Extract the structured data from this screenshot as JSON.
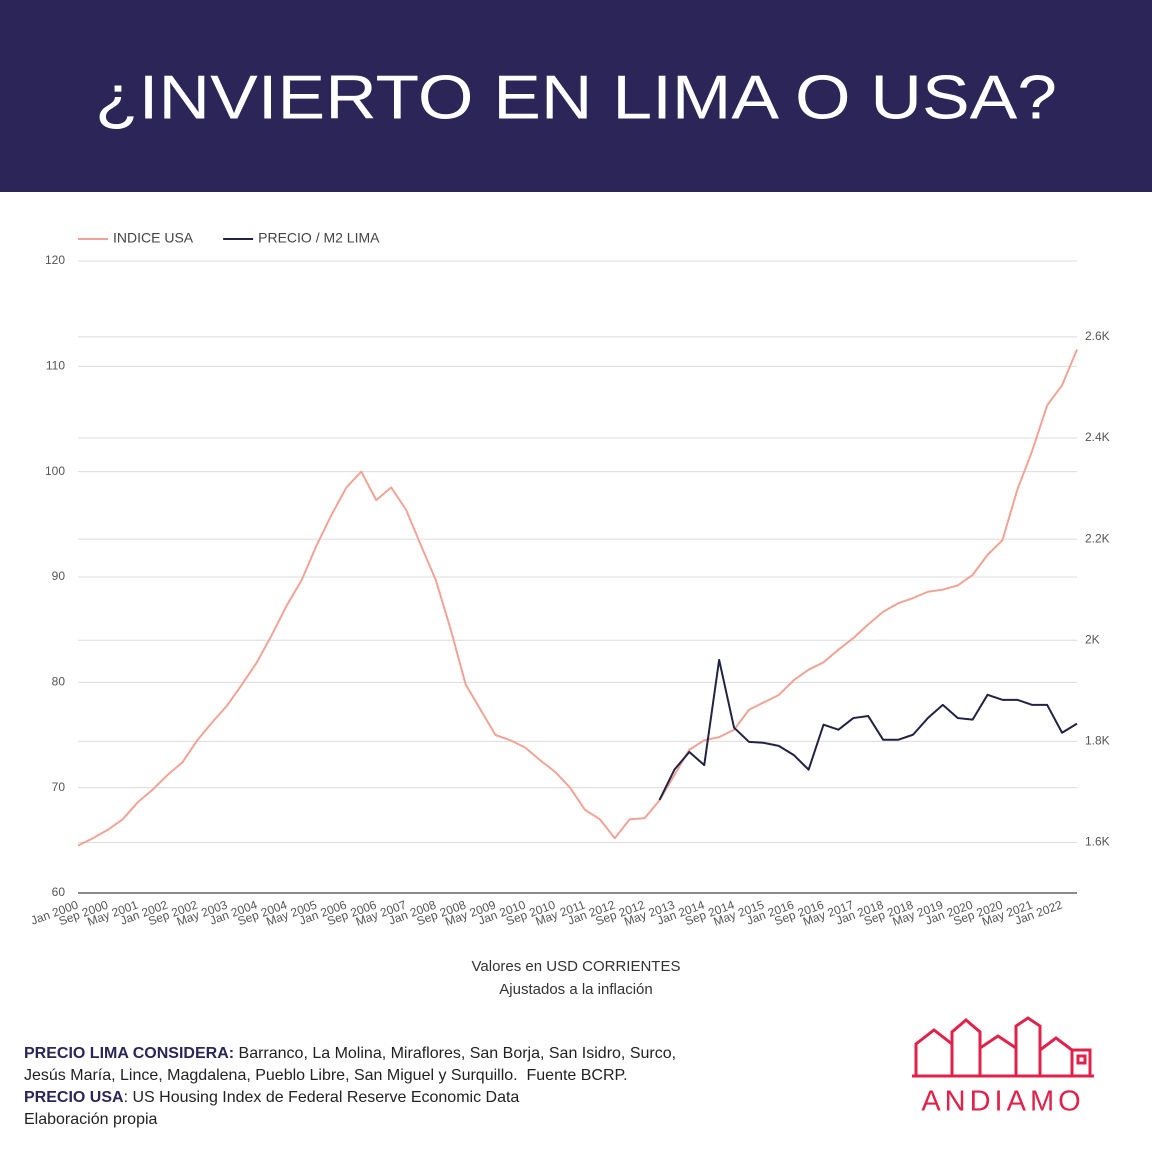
{
  "chart_data": {
    "type": "line",
    "title": "¿INVIERTO EN LIMA O USA?",
    "x": [
      "Jan 2000",
      null,
      "Sep 2000",
      null,
      "May 2001",
      null,
      "Jan 2002",
      null,
      "Sep 2002",
      null,
      "May 2003",
      null,
      "Jan 2004",
      null,
      "Sep 2004",
      null,
      "May 2005",
      null,
      "Jan 2006",
      null,
      "Sep 2006",
      null,
      "May 2007",
      null,
      "Jan 2008",
      null,
      "Sep 2008",
      null,
      "May 2009",
      null,
      "Jan 2010",
      null,
      "Sep 2010",
      null,
      "May 2011",
      null,
      "Jan 2012",
      null,
      "Sep 2012",
      null,
      "May 2013",
      null,
      "Jan 2014",
      null,
      "Sep 2014",
      null,
      "May 2015",
      null,
      "Jan 2016",
      null,
      "Sep 2016",
      null,
      "May 2017",
      null,
      "Jan 2018",
      null,
      "Sep 2018",
      null,
      "May 2019",
      null,
      "Jan 2020",
      null,
      "Sep 2020",
      null,
      "May 2021",
      null,
      "Jan 2022",
      null
    ],
    "series": [
      {
        "name": "INDICE USA",
        "color": "#f0a496",
        "values": [
          64.5,
          65.2,
          66,
          67,
          68.6,
          69.8,
          71.2,
          72.4,
          74.5,
          76.2,
          77.8,
          79.8,
          81.9,
          84.5,
          87.3,
          89.7,
          93,
          95.9,
          98.5,
          100,
          97.3,
          98.5,
          96.4,
          93,
          89.7,
          85,
          79.8,
          77.4,
          75,
          74.5,
          73.8,
          72.6,
          71.5,
          70,
          67.9,
          67,
          65.2,
          67,
          67.1,
          68.8,
          71.2,
          73.6,
          74.5,
          74.8,
          75.5,
          77.4,
          78.1,
          78.8,
          80.2,
          81.2,
          81.9,
          83.1,
          84.2,
          85.5,
          86.7,
          87.5,
          88,
          88.6,
          88.8,
          89.2,
          90.2,
          92.1,
          93.5,
          98.3,
          102,
          106.3,
          108.2,
          111.6
        ]
      },
      {
        "name": "PRECIO / M2 LIMA",
        "color": "#232245",
        "axis": "y2",
        "values": [
          null,
          null,
          null,
          null,
          null,
          null,
          null,
          null,
          null,
          null,
          null,
          null,
          null,
          null,
          null,
          null,
          null,
          null,
          null,
          null,
          null,
          null,
          null,
          null,
          null,
          null,
          null,
          null,
          null,
          null,
          null,
          null,
          null,
          null,
          null,
          null,
          null,
          null,
          null,
          1684,
          1744,
          1779,
          1753,
          1961,
          1827,
          1799,
          1797,
          1791,
          1773,
          1744,
          1833,
          1823,
          1846,
          1850,
          1803,
          1803,
          1813,
          1846,
          1872,
          1846,
          1843,
          1892,
          1882,
          1882,
          1872,
          1872,
          1817,
          1835
        ]
      }
    ],
    "ylim": [
      60,
      120
    ],
    "yticks": [
      60,
      70,
      80,
      90,
      100,
      110,
      120
    ],
    "y2lim": [
      1500,
      2750
    ],
    "y2ticks": [
      {
        "value": 1600,
        "label": "1.6K"
      },
      {
        "value": 1800,
        "label": "1.8K"
      },
      {
        "value": 2000,
        "label": "2K"
      },
      {
        "value": 2200,
        "label": "2.2K"
      },
      {
        "value": 2400,
        "label": "2.4K"
      },
      {
        "value": 2600,
        "label": "2.6K"
      }
    ],
    "grid": true,
    "legend": "top-left",
    "caption": [
      "Valores en USD CORRIENTES",
      "Ajustados a la inflación"
    ],
    "notes": [
      {
        "bold": "PRECIO LIMA CONSIDERA:",
        "text": " Barranco, La Molina, Miraflores, San Borja, San Isidro, Surco,"
      },
      {
        "text": "Jesús María, Lince, Magdalena, Pueblo Libre, San Miguel y Surquillo.  Fuente BCRP."
      },
      {
        "bold": "PRECIO USA",
        "text": ": US Housing Index de Federal Reserve Economic Data"
      },
      {
        "text": "Elaboración propia"
      }
    ],
    "logo": "ANDIAMO"
  }
}
